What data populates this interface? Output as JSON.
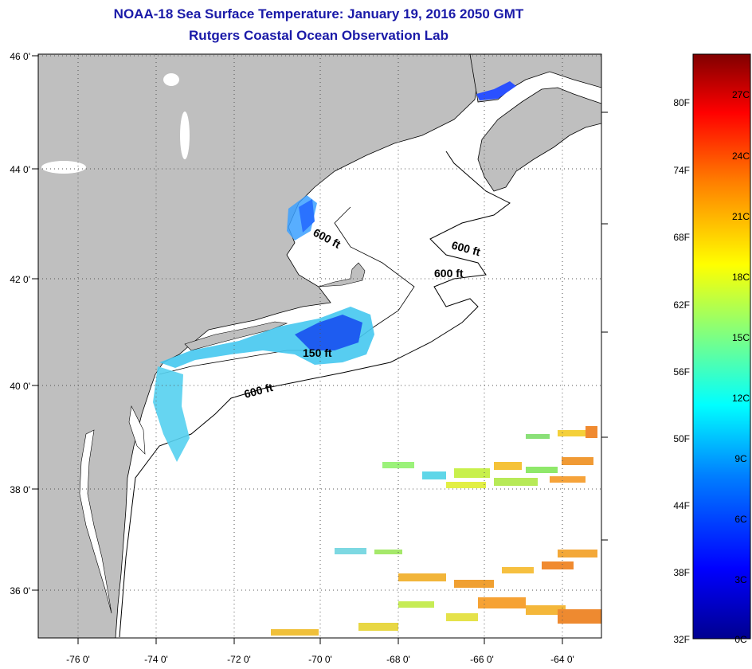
{
  "title_line1": "NOAA-18 Sea Surface Temperature:  January 19, 2016 2050 GMT",
  "title_line2": "Rutgers Coastal Ocean Observation Lab",
  "map": {
    "land_color": "#bfbfbf",
    "water_color": "#ffffff",
    "grid": "dotted",
    "lat_labels": [
      "46 0'",
      "44 0'",
      "42 0'",
      "40 0'",
      "38 0'",
      "36 0'"
    ],
    "lon_labels": [
      "-76 0'",
      "-74 0'",
      "-72 0'",
      "-70 0'",
      "-68 0'",
      "-66 0'",
      "-64 0'"
    ],
    "contour_labels": [
      "600 ft",
      "600 ft",
      "600 ft",
      "150 ft",
      "600 ft"
    ]
  },
  "colorbar": {
    "fahrenheit_labels": [
      "80F",
      "74F",
      "68F",
      "62F",
      "56F",
      "50F",
      "44F",
      "38F",
      "32F"
    ],
    "celsius_labels": [
      "27C",
      "24C",
      "21C",
      "18C",
      "15C",
      "12C",
      "9C",
      "6C",
      "3C",
      "0C"
    ],
    "colors": [
      "#00008f",
      "#0000ff",
      "#0080ff",
      "#00ffff",
      "#80ff80",
      "#ffff00",
      "#ff8000",
      "#ff0000",
      "#800000"
    ]
  }
}
